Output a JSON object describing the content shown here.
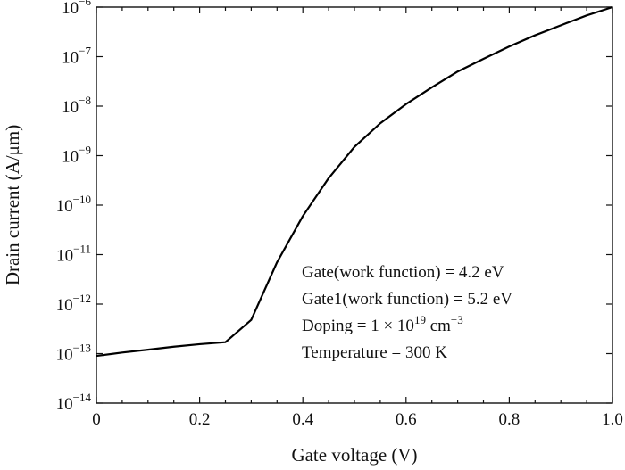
{
  "chart_data": {
    "type": "line",
    "xlabel": "Gate voltage (V)",
    "ylabel": "Drain current (A/μm)",
    "y_scale": "log",
    "xlim": [
      0,
      1.0
    ],
    "ylim": [
      1e-14,
      1e-06
    ],
    "grid": false,
    "x_ticks": [
      {
        "value": 0,
        "label": "0"
      },
      {
        "value": 0.2,
        "label": "0.2"
      },
      {
        "value": 0.4,
        "label": "0.4"
      },
      {
        "value": 0.6,
        "label": "0.6"
      },
      {
        "value": 0.8,
        "label": "0.8"
      },
      {
        "value": 1.0,
        "label": "1.0"
      }
    ],
    "y_ticks": [
      {
        "value": 1e-14,
        "base": "10",
        "exp": "−14"
      },
      {
        "value": 1e-13,
        "base": "10",
        "exp": "−13"
      },
      {
        "value": 1e-12,
        "base": "10",
        "exp": "−12"
      },
      {
        "value": 1e-11,
        "base": "10",
        "exp": "−11"
      },
      {
        "value": 1e-10,
        "base": "10",
        "exp": "−10"
      },
      {
        "value": 1e-09,
        "base": "10",
        "exp": "−9"
      },
      {
        "value": 1e-08,
        "base": "10",
        "exp": "−8"
      },
      {
        "value": 1e-07,
        "base": "10",
        "exp": "−7"
      },
      {
        "value": 1e-06,
        "base": "10",
        "exp": "−6"
      }
    ],
    "series": [
      {
        "color": "#000000",
        "points": [
          [
            0.0,
            9e-14
          ],
          [
            0.05,
            1.05e-13
          ],
          [
            0.1,
            1.2e-13
          ],
          [
            0.15,
            1.38e-13
          ],
          [
            0.2,
            1.55e-13
          ],
          [
            0.25,
            1.7e-13
          ],
          [
            0.3,
            4.8e-13
          ],
          [
            0.35,
            7e-12
          ],
          [
            0.4,
            6e-11
          ],
          [
            0.45,
            3.5e-10
          ],
          [
            0.5,
            1.5e-09
          ],
          [
            0.55,
            4.5e-09
          ],
          [
            0.6,
            1.1e-08
          ],
          [
            0.65,
            2.4e-08
          ],
          [
            0.7,
            5e-08
          ],
          [
            0.75,
            9e-08
          ],
          [
            0.8,
            1.6e-07
          ],
          [
            0.85,
            2.7e-07
          ],
          [
            0.9,
            4.3e-07
          ],
          [
            0.95,
            6.8e-07
          ],
          [
            1.0,
            1e-06
          ]
        ]
      }
    ],
    "annotations": [
      {
        "parts": [
          {
            "t": "Gate(work function) = 4.2 eV"
          }
        ]
      },
      {
        "parts": [
          {
            "t": "Gate1(work function) = 5.2 eV"
          }
        ]
      },
      {
        "parts": [
          {
            "t": "Doping = 1 × 10"
          },
          {
            "t": "19",
            "sup": true
          },
          {
            "t": " cm"
          },
          {
            "t": "−3",
            "sup": true
          }
        ]
      },
      {
        "parts": [
          {
            "t": "Temperature = 300 K"
          }
        ]
      }
    ]
  }
}
